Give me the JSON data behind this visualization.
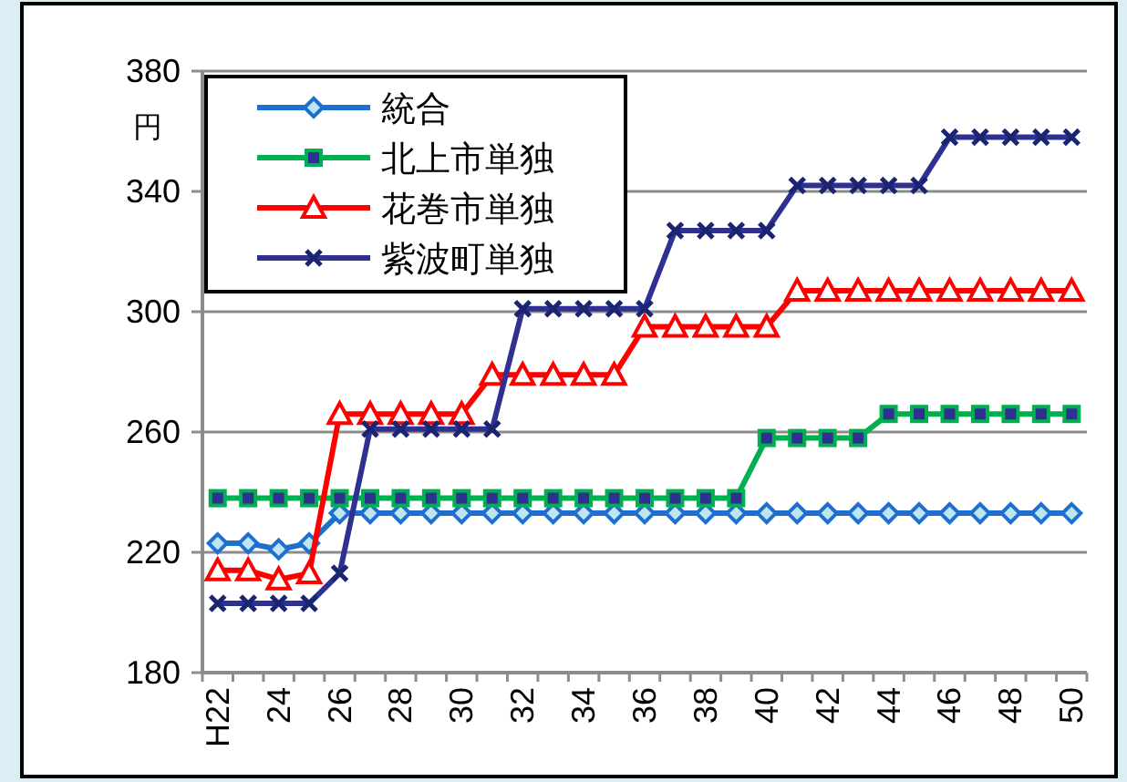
{
  "chart_data": {
    "type": "line",
    "ylabel": "円",
    "categories": [
      "H22",
      null,
      "24",
      null,
      "26",
      null,
      "28",
      null,
      "30",
      null,
      "32",
      null,
      "34",
      null,
      "36",
      null,
      "38",
      null,
      "40",
      null,
      "42",
      null,
      "44",
      null,
      "46",
      null,
      "48",
      null,
      "50"
    ],
    "ylim": [
      180,
      380
    ],
    "yticks": [
      180,
      220,
      260,
      300,
      340,
      380
    ],
    "grid": "y",
    "legend": "top left",
    "series": [
      {
        "name": "統合",
        "color": "#1f6fd0",
        "marker": "diamond",
        "values": [
          223,
          223,
          221,
          223,
          233,
          233,
          233,
          233,
          233,
          233,
          233,
          233,
          233,
          233,
          233,
          233,
          233,
          233,
          233,
          233,
          233,
          233,
          233,
          233,
          233,
          233,
          233,
          233,
          233
        ]
      },
      {
        "name": "北上市単独",
        "color": "#00b050",
        "marker": "square",
        "values": [
          238,
          238,
          238,
          238,
          238,
          238,
          238,
          238,
          238,
          238,
          238,
          238,
          238,
          238,
          238,
          238,
          238,
          238,
          258,
          258,
          258,
          258,
          266,
          266,
          266,
          266,
          266,
          266,
          266
        ]
      },
      {
        "name": "花巻市単独",
        "color": "#ff0000",
        "marker": "triangle",
        "values": [
          214,
          214,
          211,
          213,
          266,
          266,
          266,
          266,
          266,
          279,
          279,
          279,
          279,
          279,
          295,
          295,
          295,
          295,
          295,
          307,
          307,
          307,
          307,
          307,
          307,
          307,
          307,
          307,
          307
        ]
      },
      {
        "name": "紫波町単独",
        "color": "#2e3192",
        "marker": "cross",
        "values": [
          203,
          203,
          203,
          203,
          213,
          261,
          261,
          261,
          261,
          261,
          301,
          301,
          301,
          301,
          301,
          327,
          327,
          327,
          327,
          342,
          342,
          342,
          342,
          342,
          358,
          358,
          358,
          358,
          358
        ]
      }
    ]
  }
}
